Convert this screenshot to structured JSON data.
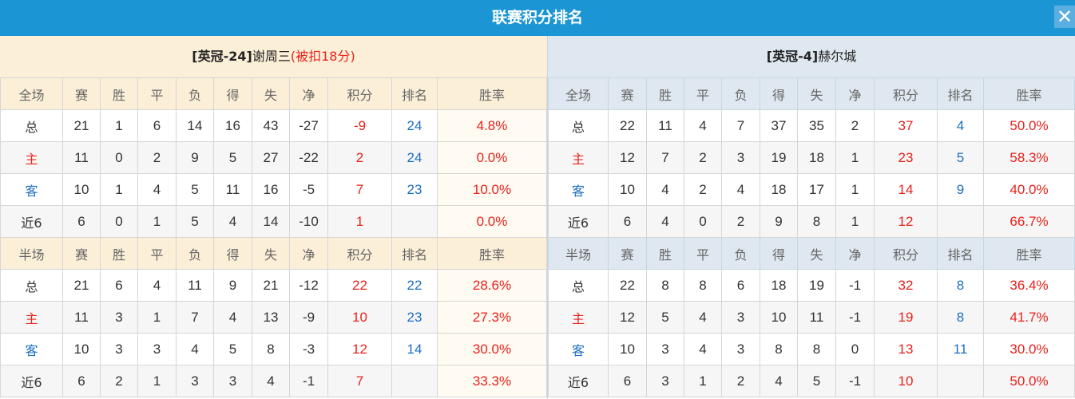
{
  "title": "联赛积分排名",
  "close_icon": "close-icon",
  "colors": {
    "title_bar": "#1b95d4",
    "points": "#e8221b",
    "rank": "#1f6fc2",
    "home_team_bg": "#fcefd8",
    "away_team_bg": "#dfe8f0"
  },
  "headers_full": [
    "全场",
    "赛",
    "胜",
    "平",
    "负",
    "得",
    "失",
    "净",
    "积分",
    "排名",
    "胜率"
  ],
  "headers_half": [
    "半场",
    "赛",
    "胜",
    "平",
    "负",
    "得",
    "失",
    "净",
    "积分",
    "排名",
    "胜率"
  ],
  "left": {
    "team_prefix": "[英冠-24]",
    "team_name": "谢周三",
    "penalty": "(被扣18分)",
    "full": [
      [
        "总",
        "21",
        "1",
        "6",
        "14",
        "16",
        "43",
        "-27",
        "-9",
        "24",
        "4.8%"
      ],
      [
        "主",
        "11",
        "0",
        "2",
        "9",
        "5",
        "27",
        "-22",
        "2",
        "24",
        "0.0%"
      ],
      [
        "客",
        "10",
        "1",
        "4",
        "5",
        "11",
        "16",
        "-5",
        "7",
        "23",
        "10.0%"
      ],
      [
        "近6",
        "6",
        "0",
        "1",
        "5",
        "4",
        "14",
        "-10",
        "1",
        "",
        "0.0%"
      ]
    ],
    "half": [
      [
        "总",
        "21",
        "6",
        "4",
        "11",
        "9",
        "21",
        "-12",
        "22",
        "22",
        "28.6%"
      ],
      [
        "主",
        "11",
        "3",
        "1",
        "7",
        "4",
        "13",
        "-9",
        "10",
        "23",
        "27.3%"
      ],
      [
        "客",
        "10",
        "3",
        "3",
        "4",
        "5",
        "8",
        "-3",
        "12",
        "14",
        "30.0%"
      ],
      [
        "近6",
        "6",
        "2",
        "1",
        "3",
        "3",
        "4",
        "-1",
        "7",
        "",
        "33.3%"
      ]
    ]
  },
  "right": {
    "team_prefix": "[英冠-4]",
    "team_name": "赫尔城",
    "full": [
      [
        "总",
        "22",
        "11",
        "4",
        "7",
        "37",
        "35",
        "2",
        "37",
        "4",
        "50.0%"
      ],
      [
        "主",
        "12",
        "7",
        "2",
        "3",
        "19",
        "18",
        "1",
        "23",
        "5",
        "58.3%"
      ],
      [
        "客",
        "10",
        "4",
        "2",
        "4",
        "18",
        "17",
        "1",
        "14",
        "9",
        "40.0%"
      ],
      [
        "近6",
        "6",
        "4",
        "0",
        "2",
        "9",
        "8",
        "1",
        "12",
        "",
        "66.7%"
      ]
    ],
    "half": [
      [
        "总",
        "22",
        "8",
        "8",
        "6",
        "18",
        "19",
        "-1",
        "32",
        "8",
        "36.4%"
      ],
      [
        "主",
        "12",
        "5",
        "4",
        "3",
        "10",
        "11",
        "-1",
        "19",
        "8",
        "41.7%"
      ],
      [
        "客",
        "10",
        "3",
        "4",
        "3",
        "8",
        "8",
        "0",
        "13",
        "11",
        "30.0%"
      ],
      [
        "近6",
        "6",
        "3",
        "1",
        "2",
        "4",
        "5",
        "-1",
        "10",
        "",
        "50.0%"
      ]
    ]
  }
}
